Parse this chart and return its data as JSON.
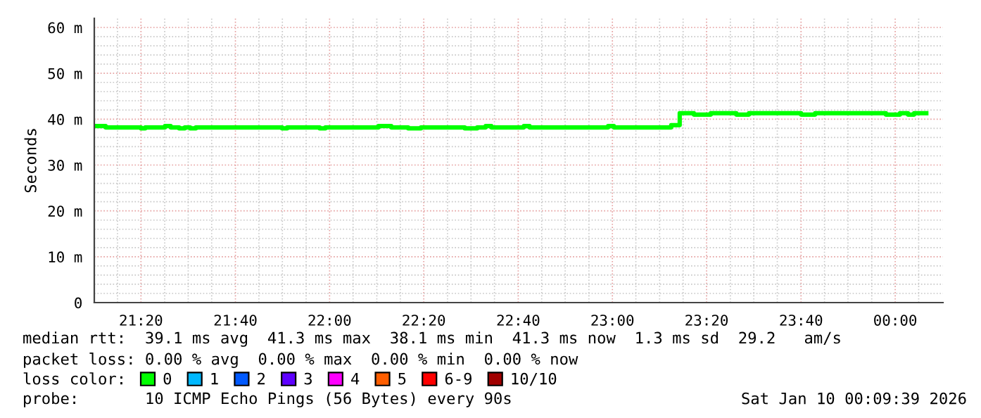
{
  "chart_data": {
    "type": "step",
    "ylabel": "Seconds",
    "legend_title": "loss color:",
    "legend": "bottom",
    "grid": true,
    "line_style": "solid",
    "marker": "none",
    "x": [
      21.168,
      21.208,
      21.333,
      21.348,
      21.418,
      21.438,
      21.468,
      21.488,
      21.507,
      21.527,
      21.832,
      21.85,
      21.965,
      21.985,
      22.173,
      22.218,
      22.278,
      22.323,
      22.478,
      22.522,
      22.552,
      22.572,
      22.687,
      22.707,
      22.985,
      23.005,
      23.208,
      23.238,
      23.288,
      23.348,
      23.438,
      23.483,
      23.667,
      23.717,
      23.967,
      24.017,
      24.045,
      24.067,
      24.11
    ],
    "series": [
      {
        "name": "0",
        "color": "#00ff00",
        "values": [
          38.5,
          38.2,
          38.0,
          38.2,
          38.5,
          38.2,
          38.0,
          38.2,
          38.0,
          38.2,
          38.0,
          38.2,
          38.0,
          38.2,
          38.5,
          38.2,
          38.0,
          38.2,
          38.0,
          38.2,
          38.5,
          38.2,
          38.5,
          38.2,
          38.5,
          38.2,
          38.7,
          41.3,
          41.0,
          41.3,
          41.0,
          41.3,
          41.0,
          41.3,
          41.0,
          41.3,
          41.0,
          41.3,
          41.3
        ]
      },
      {
        "name": "1",
        "color": "#00b8ff",
        "values": [
          null,
          null,
          null,
          null,
          null,
          null,
          null,
          null,
          null,
          null,
          null,
          null,
          null,
          null,
          null,
          null,
          null,
          null,
          null,
          null,
          null,
          null,
          null,
          null,
          null,
          null,
          null,
          null,
          null,
          null,
          null,
          null,
          null,
          null,
          null,
          null,
          null,
          null,
          null
        ]
      },
      {
        "name": "2",
        "color": "#0059ff",
        "values": [
          null,
          null,
          null,
          null,
          null,
          null,
          null,
          null,
          null,
          null,
          null,
          null,
          null,
          null,
          null,
          null,
          null,
          null,
          null,
          null,
          null,
          null,
          null,
          null,
          null,
          null,
          null,
          null,
          null,
          null,
          null,
          null,
          null,
          null,
          null,
          null,
          null,
          null,
          null
        ]
      },
      {
        "name": "3",
        "color": "#5e00ff",
        "values": [
          null,
          null,
          null,
          null,
          null,
          null,
          null,
          null,
          null,
          null,
          null,
          null,
          null,
          null,
          null,
          null,
          null,
          null,
          null,
          null,
          null,
          null,
          null,
          null,
          null,
          null,
          null,
          null,
          null,
          null,
          null,
          null,
          null,
          null,
          null,
          null,
          null,
          null,
          null
        ]
      },
      {
        "name": "4",
        "color": "#ff00ff",
        "values": [
          null,
          null,
          null,
          null,
          null,
          null,
          null,
          null,
          null,
          null,
          null,
          null,
          null,
          null,
          null,
          null,
          null,
          null,
          null,
          null,
          null,
          null,
          null,
          null,
          null,
          null,
          null,
          null,
          null,
          null,
          null,
          null,
          null,
          null,
          null,
          null,
          null,
          null,
          null
        ]
      },
      {
        "name": "5",
        "color": "#ff5e00",
        "values": [
          null,
          null,
          null,
          null,
          null,
          null,
          null,
          null,
          null,
          null,
          null,
          null,
          null,
          null,
          null,
          null,
          null,
          null,
          null,
          null,
          null,
          null,
          null,
          null,
          null,
          null,
          null,
          null,
          null,
          null,
          null,
          null,
          null,
          null,
          null,
          null,
          null,
          null,
          null
        ]
      },
      {
        "name": "6-9",
        "color": "#ff0000",
        "values": [
          null,
          null,
          null,
          null,
          null,
          null,
          null,
          null,
          null,
          null,
          null,
          null,
          null,
          null,
          null,
          null,
          null,
          null,
          null,
          null,
          null,
          null,
          null,
          null,
          null,
          null,
          null,
          null,
          null,
          null,
          null,
          null,
          null,
          null,
          null,
          null,
          null,
          null,
          null
        ]
      },
      {
        "name": "10/10",
        "color": "#a10000",
        "values": [
          null,
          null,
          null,
          null,
          null,
          null,
          null,
          null,
          null,
          null,
          null,
          null,
          null,
          null,
          null,
          null,
          null,
          null,
          null,
          null,
          null,
          null,
          null,
          null,
          null,
          null,
          null,
          null,
          null,
          null,
          null,
          null,
          null,
          null,
          null,
          null,
          null,
          null,
          null
        ]
      }
    ],
    "xlim": [
      21.168,
      24.169
    ],
    "xticks": [
      {
        "value": 21.25,
        "label": null
      },
      {
        "value": 21.333,
        "label": "21:20"
      },
      {
        "value": 21.417,
        "label": null
      },
      {
        "value": 21.5,
        "label": null
      },
      {
        "value": 21.583,
        "label": null
      },
      {
        "value": 21.667,
        "label": "21:40"
      },
      {
        "value": 21.75,
        "label": null
      },
      {
        "value": 21.833,
        "label": null
      },
      {
        "value": 21.917,
        "label": null
      },
      {
        "value": 22,
        "label": "22:00"
      },
      {
        "value": 22.083,
        "label": null
      },
      {
        "value": 22.167,
        "label": null
      },
      {
        "value": 22.25,
        "label": null
      },
      {
        "value": 22.333,
        "label": "22:20"
      },
      {
        "value": 22.417,
        "label": null
      },
      {
        "value": 22.5,
        "label": null
      },
      {
        "value": 22.583,
        "label": null
      },
      {
        "value": 22.667,
        "label": "22:40"
      },
      {
        "value": 22.75,
        "label": null
      },
      {
        "value": 22.833,
        "label": null
      },
      {
        "value": 22.917,
        "label": null
      },
      {
        "value": 23,
        "label": "23:00"
      },
      {
        "value": 23.083,
        "label": null
      },
      {
        "value": 23.167,
        "label": null
      },
      {
        "value": 23.25,
        "label": null
      },
      {
        "value": 23.333,
        "label": "23:20"
      },
      {
        "value": 23.417,
        "label": null
      },
      {
        "value": 23.5,
        "label": null
      },
      {
        "value": 23.583,
        "label": null
      },
      {
        "value": 23.667,
        "label": "23:40"
      },
      {
        "value": 23.75,
        "label": null
      },
      {
        "value": 23.833,
        "label": null
      },
      {
        "value": 23.917,
        "label": null
      },
      {
        "value": 24,
        "label": "00:00"
      },
      {
        "value": 24.083,
        "label": null
      }
    ],
    "ylim": [
      0,
      62
    ],
    "yticks": [
      0,
      {
        "value": 2,
        "label": null
      },
      {
        "value": 4,
        "label": null
      },
      {
        "value": 6,
        "label": null
      },
      {
        "value": 8,
        "label": null
      },
      {
        "value": 10,
        "label": "10 m"
      },
      {
        "value": 12,
        "label": null
      },
      {
        "value": 14,
        "label": null
      },
      {
        "value": 16,
        "label": null
      },
      {
        "value": 18,
        "label": null
      },
      {
        "value": 20,
        "label": "20 m"
      },
      {
        "value": 22,
        "label": null
      },
      {
        "value": 24,
        "label": null
      },
      {
        "value": 26,
        "label": null
      },
      {
        "value": 28,
        "label": null
      },
      {
        "value": 30,
        "label": "30 m"
      },
      {
        "value": 32,
        "label": null
      },
      {
        "value": 34,
        "label": null
      },
      {
        "value": 36,
        "label": null
      },
      {
        "value": 38,
        "label": null
      },
      {
        "value": 40,
        "label": "40 m"
      },
      {
        "value": 42,
        "label": null
      },
      {
        "value": 44,
        "label": null
      },
      {
        "value": 46,
        "label": null
      },
      {
        "value": 48,
        "label": null
      },
      {
        "value": 50,
        "label": "50 m"
      },
      {
        "value": 52,
        "label": null
      },
      {
        "value": 54,
        "label": null
      },
      {
        "value": 56,
        "label": null
      },
      {
        "value": 58,
        "label": null
      },
      {
        "value": 60,
        "label": "60 m"
      }
    ],
    "annotations": [
      "median rtt:  39.1 ms avg  41.3 ms max  38.1 ms min  41.3 ms now  1.3 ms sd  29.2   am/s",
      "packet loss: 0.00 % avg  0.00 % max  0.00 % min  0.00 % now",
      "probe:       10 ICMP Echo Pings (56 Bytes) every 90s",
      "Sat Jan 10 00:09:39 2026"
    ]
  }
}
